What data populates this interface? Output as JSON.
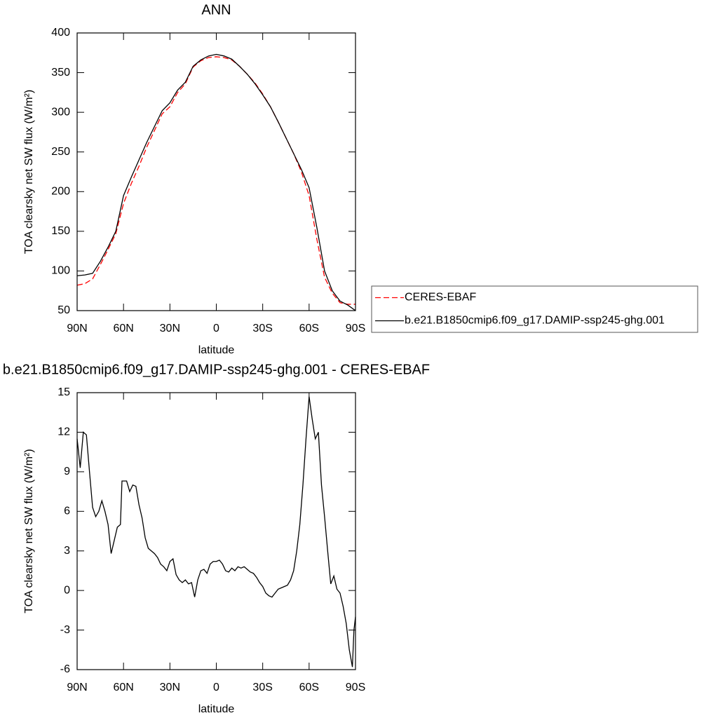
{
  "chart_data": [
    {
      "type": "line",
      "title": "ANN",
      "xlabel": "latitude",
      "ylabel": "TOA clearsky net SW flux (W/m²)",
      "x": [
        90,
        85,
        80,
        75,
        70,
        65,
        60,
        55,
        50,
        45,
        40,
        35,
        30,
        25,
        20,
        15,
        10,
        5,
        0,
        -5,
        -10,
        -15,
        -20,
        -25,
        -30,
        -35,
        -40,
        -45,
        -50,
        -55,
        -60,
        -65,
        -70,
        -75,
        -80,
        -85,
        -90
      ],
      "xlim": [
        90,
        -90
      ],
      "xticks": [
        {
          "value": 90,
          "label": "90N"
        },
        {
          "value": 60,
          "label": "60N"
        },
        {
          "value": 30,
          "label": "30N"
        },
        0,
        {
          "value": -30,
          "label": "30S"
        },
        {
          "value": -60,
          "label": "60S"
        },
        {
          "value": -90,
          "label": "90S"
        }
      ],
      "ylim": [
        50,
        400
      ],
      "yticks": [
        50,
        100,
        150,
        200,
        250,
        300,
        350,
        400
      ],
      "legend": "right",
      "series": [
        {
          "name": "CERES-EBAF",
          "color": "#ff0000",
          "linestyle": "dashed",
          "values": [
            82,
            84,
            90,
            108,
            127,
            147,
            185,
            210,
            232,
            256,
            277,
            298,
            307,
            325,
            336,
            357,
            365,
            369,
            370,
            369,
            366,
            358,
            348,
            337,
            323,
            307,
            288,
            268,
            248,
            225,
            195,
            140,
            92,
            72,
            60,
            58,
            58
          ]
        },
        {
          "name": "b.e21.B1850cmip6.f09_g17.DAMIP-ssp245-ghg.001",
          "color": "#000000",
          "linestyle": "solid",
          "values": [
            94,
            95,
            97,
            112,
            130,
            150,
            195,
            218,
            240,
            262,
            282,
            302,
            312,
            328,
            338,
            358,
            366,
            371,
            373,
            371,
            367,
            358,
            348,
            336,
            322,
            307,
            288,
            268,
            248,
            228,
            205,
            155,
            100,
            75,
            62,
            57,
            50
          ]
        }
      ]
    },
    {
      "type": "line",
      "title": "b.e21.B1850cmip6.f09_g17.DAMIP-ssp245-ghg.001 - CERES-EBAF",
      "xlabel": "latitude",
      "ylabel": "TOA clearsky net SW flux (W/m²)",
      "x": [
        90,
        88,
        86,
        84,
        82,
        80,
        78,
        76,
        74,
        72,
        70,
        68,
        66,
        64,
        62,
        61,
        58,
        56,
        54,
        52,
        50,
        48,
        46,
        44,
        42,
        40,
        38,
        36,
        34,
        32,
        30,
        28,
        26,
        24,
        22,
        20,
        18,
        16,
        14,
        12,
        10,
        8,
        6,
        4,
        2,
        0,
        -2,
        -4,
        -6,
        -8,
        -10,
        -12,
        -14,
        -16,
        -18,
        -20,
        -22,
        -24,
        -26,
        -28,
        -30,
        -32,
        -34,
        -36,
        -38,
        -40,
        -42,
        -44,
        -46,
        -48,
        -50,
        -52,
        -54,
        -56,
        -58,
        -60,
        -62,
        -64,
        -66,
        -68,
        -70,
        -72,
        -74,
        -76,
        -78,
        -80,
        -82,
        -84,
        -86,
        -88,
        -89,
        -90
      ],
      "xlim": [
        90,
        -90
      ],
      "xticks": [
        {
          "value": 90,
          "label": "90N"
        },
        {
          "value": 60,
          "label": "60N"
        },
        {
          "value": 30,
          "label": "30N"
        },
        0,
        {
          "value": -30,
          "label": "30S"
        },
        {
          "value": -60,
          "label": "60S"
        },
        {
          "value": -90,
          "label": "90S"
        }
      ],
      "ylim": [
        -6,
        15
      ],
      "yticks": [
        -6,
        -3,
        0,
        3,
        6,
        9,
        12,
        15
      ],
      "series": [
        {
          "color": "#000000",
          "linestyle": "solid",
          "values": [
            11.5,
            9.3,
            12,
            11.8,
            9,
            6.3,
            5.6,
            6,
            6.8,
            6,
            5,
            2.8,
            3.8,
            4.8,
            5,
            8.3,
            8.3,
            7.5,
            8,
            7.9,
            6.5,
            5.5,
            4,
            3.2,
            3,
            2.8,
            2.5,
            2,
            1.8,
            1.5,
            2.2,
            2.4,
            1.2,
            0.8,
            0.6,
            0.8,
            0.5,
            0.6,
            -0.5,
            0.8,
            1.5,
            1.6,
            1.3,
            2,
            2.2,
            2.2,
            2.3,
            2,
            1.5,
            1.4,
            1.7,
            1.5,
            1.8,
            1.7,
            1.8,
            1.6,
            1.4,
            1.3,
            1,
            0.6,
            0.3,
            -0.2,
            -0.4,
            -0.5,
            -0.2,
            0.1,
            0.2,
            0.3,
            0.4,
            0.8,
            1.5,
            3,
            5,
            8,
            11.5,
            14.7,
            13,
            11.5,
            12,
            8,
            5.6,
            3,
            0.5,
            1.1,
            0.1,
            -0.2,
            -1.2,
            -2.5,
            -4.5,
            -5.8,
            -3,
            -2
          ]
        }
      ]
    }
  ]
}
